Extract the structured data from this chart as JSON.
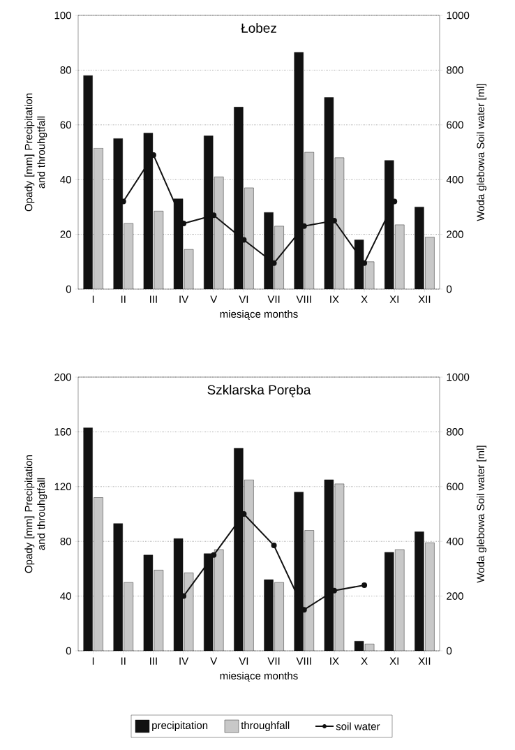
{
  "chart_data": [
    {
      "type": "bar",
      "title": "Łobez",
      "xlabel": "miesiące    months",
      "ylabel": "Opady  [mm] Precipitation and throuhgtfall",
      "y2label": "Woda glebowa  Soil water [ml]",
      "categories": [
        "I",
        "II",
        "III",
        "IV",
        "V",
        "VI",
        "VII",
        "VIII",
        "IX",
        "X",
        "XI",
        "XII"
      ],
      "series": [
        {
          "color": "#111111",
          "values": [
            78,
            55,
            57,
            33,
            56,
            66.5,
            28,
            86.5,
            70,
            18,
            47,
            30
          ]
        },
        {
          "color": "#c8c8c8",
          "values": [
            51.5,
            24,
            28.5,
            14.5,
            41,
            37,
            23,
            50,
            48,
            10,
            23.5,
            19
          ]
        },
        {
          "color": "#111111",
          "type": "line",
          "axis": "y2",
          "marker": "circle",
          "values": [
            null,
            320,
            490,
            240,
            270,
            180,
            95,
            230,
            250,
            95,
            320,
            null
          ]
        }
      ],
      "ylim": [
        0,
        100
      ],
      "yticks": [
        0,
        20,
        40,
        60,
        80,
        100
      ],
      "y2lim": [
        0,
        1000
      ],
      "y2ticks": [
        0,
        200,
        400,
        600,
        800,
        1000
      ],
      "grid": "y"
    },
    {
      "type": "bar",
      "title": "Szklarska Poręba",
      "xlabel": "miesiące    months",
      "ylabel": "Opady  [mm] Precipitation and throuhgtfall",
      "y2label": "Woda glebowa  Soil water [ml]",
      "categories": [
        "I",
        "II",
        "III",
        "IV",
        "V",
        "VI",
        "VII",
        "VIII",
        "IX",
        "X",
        "XI",
        "XII"
      ],
      "series": [
        {
          "name": "precipitation",
          "color": "#111111",
          "values": [
            163,
            93,
            70,
            82,
            71,
            148,
            52,
            116,
            125,
            7,
            72,
            87
          ]
        },
        {
          "name": "throughfall",
          "color": "#c8c8c8",
          "values": [
            112,
            50,
            59,
            57,
            74,
            125,
            50,
            88,
            122,
            5,
            74,
            79
          ]
        },
        {
          "name": "soil water",
          "color": "#111111",
          "type": "line",
          "axis": "y2",
          "marker": "circle",
          "values": [
            null,
            null,
            null,
            200,
            350,
            500,
            385,
            150,
            220,
            240,
            null,
            null
          ]
        }
      ],
      "ylim": [
        0,
        200
      ],
      "yticks": [
        0,
        40,
        80,
        120,
        160,
        200
      ],
      "y2lim": [
        0,
        1000
      ],
      "y2ticks": [
        0,
        200,
        400,
        600,
        800,
        1000
      ],
      "grid": "y",
      "legend": "bottom"
    }
  ]
}
